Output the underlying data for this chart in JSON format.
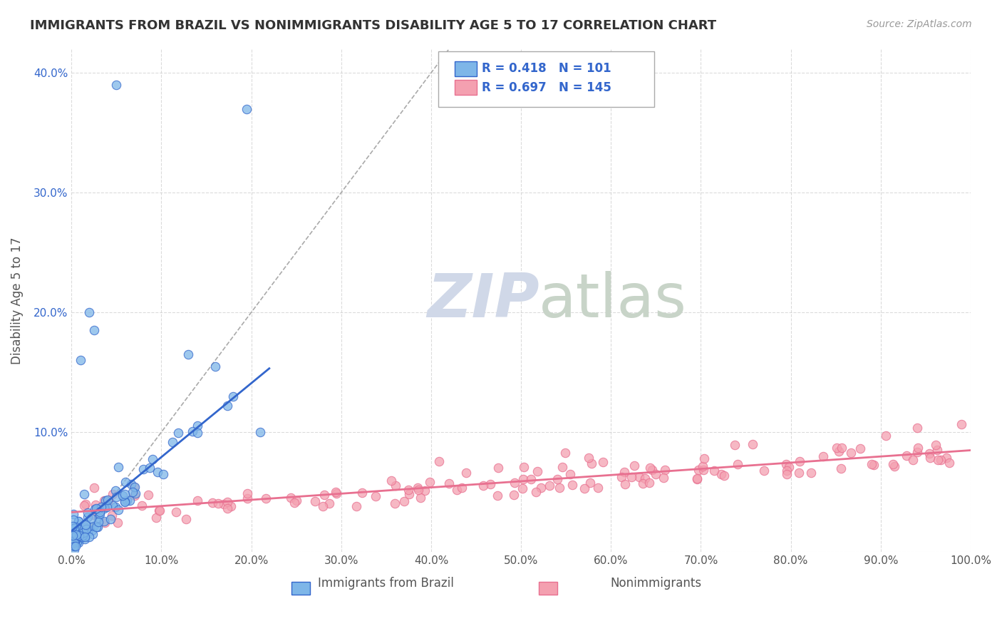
{
  "title": "IMMIGRANTS FROM BRAZIL VS NONIMMIGRANTS DISABILITY AGE 5 TO 17 CORRELATION CHART",
  "source": "Source: ZipAtlas.com",
  "xlabel": "",
  "ylabel": "Disability Age 5 to 17",
  "xlim": [
    0,
    1.0
  ],
  "ylim": [
    0,
    0.42
  ],
  "xticks": [
    0.0,
    0.1,
    0.2,
    0.3,
    0.4,
    0.5,
    0.6,
    0.7,
    0.8,
    0.9,
    1.0
  ],
  "yticks": [
    0.0,
    0.1,
    0.2,
    0.3,
    0.4
  ],
  "ytick_labels": [
    "",
    "10.0%",
    "20.0%",
    "30.0%",
    "40.0%"
  ],
  "xtick_labels": [
    "0.0%",
    "10.0%",
    "20.0%",
    "30.0%",
    "40.0%",
    "50.0%",
    "60.0%",
    "70.0%",
    "80.0%",
    "90.0%",
    "100.0%"
  ],
  "legend_labels": [
    "Immigrants from Brazil",
    "Nonimmigrants"
  ],
  "R_blue": 0.418,
  "N_blue": 101,
  "R_pink": 0.697,
  "N_pink": 145,
  "blue_color": "#7EB6E8",
  "pink_color": "#F4A0B0",
  "blue_line_color": "#3366CC",
  "pink_line_color": "#E87090",
  "watermark_color": "#D0D8E8",
  "background_color": "#FFFFFF",
  "grid_color": "#CCCCCC",
  "title_color": "#333333",
  "source_color": "#999999",
  "legend_r_color": "#3366CC",
  "legend_n_color": "#FF4444"
}
